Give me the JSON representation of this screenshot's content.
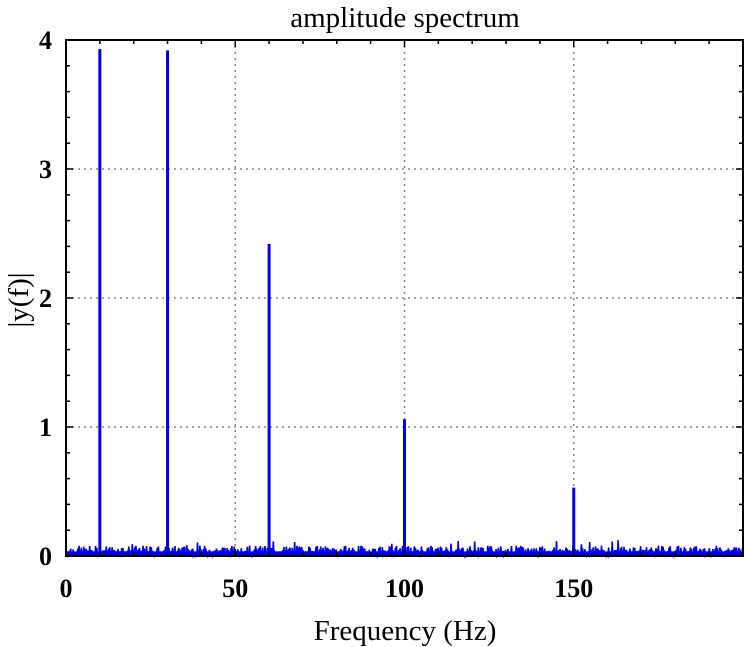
{
  "chart_data": {
    "type": "line",
    "title": "amplitude spectrum",
    "xlabel": "Frequency (Hz)",
    "ylabel": "|y(f)|",
    "xlim": [
      0,
      200
    ],
    "ylim": [
      0,
      4
    ],
    "x_ticks": [
      0,
      50,
      100,
      150
    ],
    "y_ticks": [
      0,
      1,
      2,
      3,
      4
    ],
    "grid": true,
    "colors": {
      "series": "#0000ee",
      "grid": "#8a8a8a"
    },
    "series": [
      {
        "peaks": [
          {
            "x": 10,
            "y": 3.93
          },
          {
            "x": 30,
            "y": 3.92
          },
          {
            "x": 60,
            "y": 2.42
          },
          {
            "x": 100,
            "y": 1.06
          },
          {
            "x": 150,
            "y": 0.53
          }
        ],
        "noise_floor": 0.08
      }
    ]
  }
}
